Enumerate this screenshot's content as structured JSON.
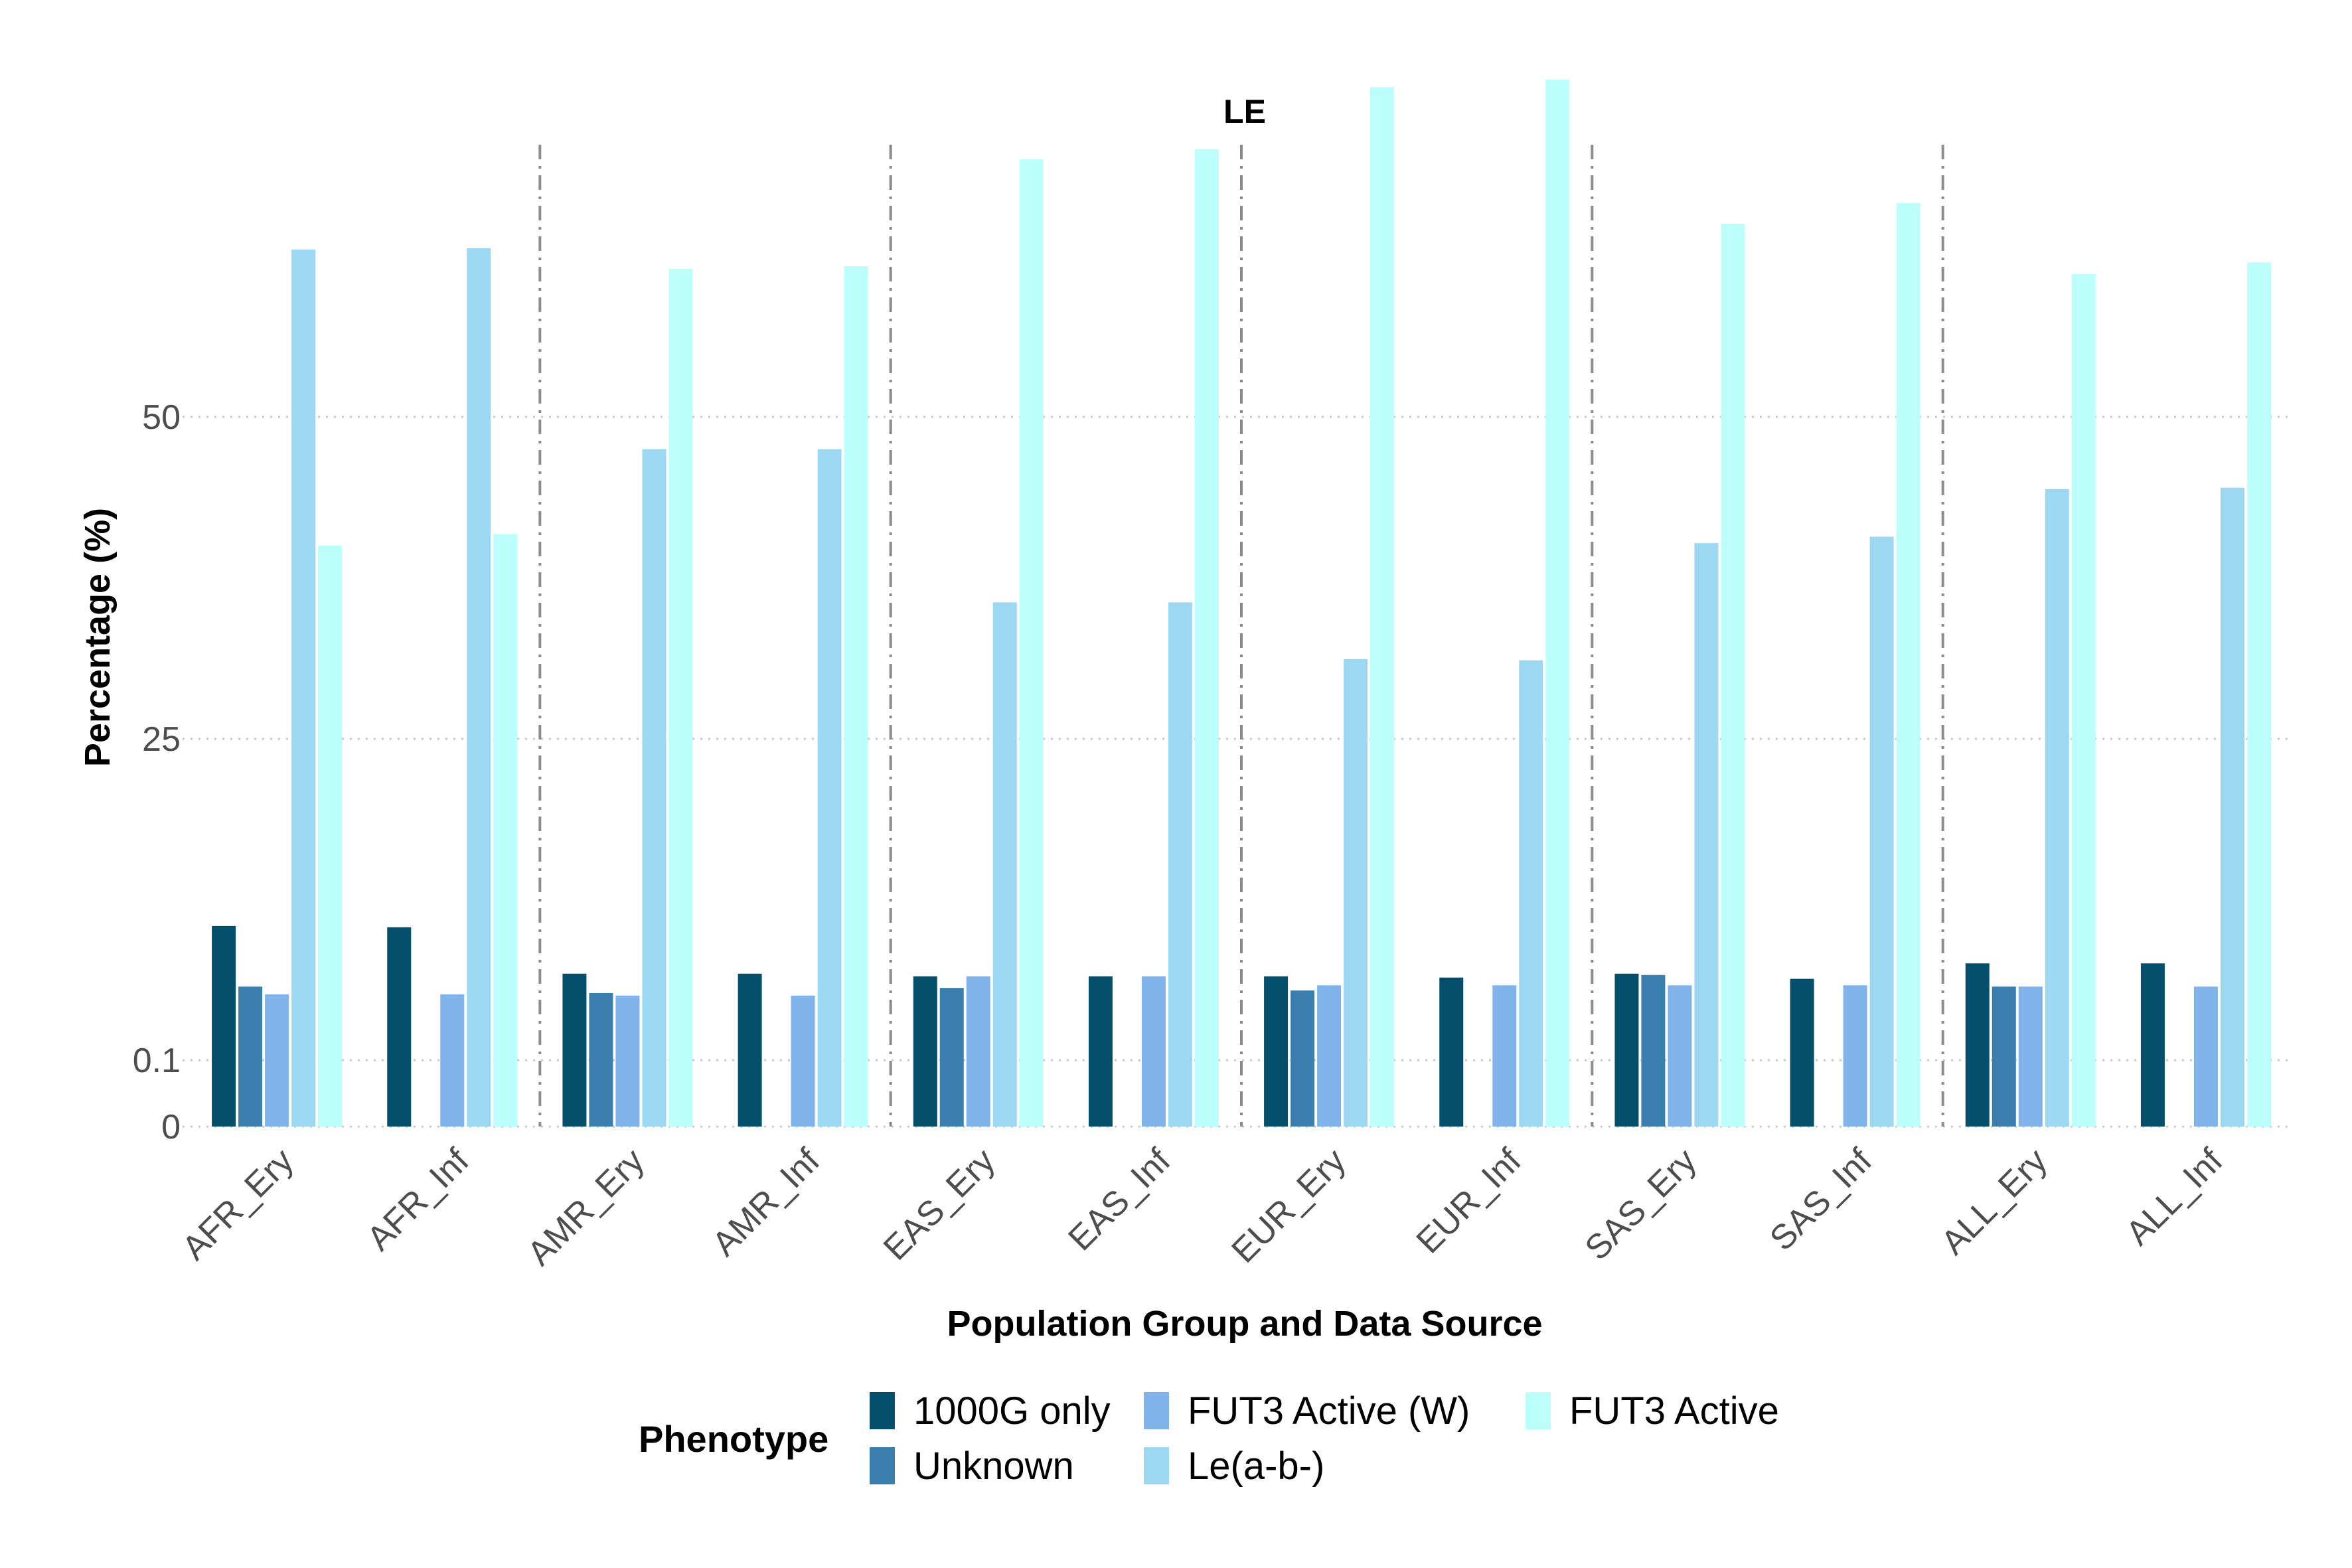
{
  "chart_data": {
    "type": "bar",
    "title": "LE",
    "xlabel": "Population Group and Data Source",
    "ylabel": "Percentage (%)",
    "y_ticks": [
      {
        "value": 0,
        "label": "0"
      },
      {
        "value": 0.1,
        "label": "0.1"
      },
      {
        "value": 25,
        "label": "25"
      },
      {
        "value": 50,
        "label": "50"
      }
    ],
    "ylim_top": 76,
    "grid": true,
    "legend": {
      "title": "Phenotype",
      "placement": "bottom"
    },
    "categories": [
      "AFR_Ery",
      "AFR_Inf",
      "AMR_Ery",
      "AMR_Inf",
      "EAS_Ery",
      "EAS_Inf",
      "EUR_Ery",
      "EUR_Inf",
      "SAS_Ery",
      "SAS_Inf",
      "ALL_Ery",
      "ALL_Inf"
    ],
    "group_separators_after": [
      "AFR_Inf",
      "AMR_Inf",
      "EAS_Inf",
      "EUR_Inf",
      "SAS_Inf"
    ],
    "series": [
      {
        "name": "1000G only",
        "color": "#044f6b",
        "values": [
          10.5,
          10.4,
          6.8,
          6.8,
          6.6,
          6.6,
          6.6,
          6.5,
          6.8,
          6.4,
          7.6,
          7.6
        ]
      },
      {
        "name": "Unknown",
        "color": "#3b7fae",
        "values": [
          5.8,
          0,
          5.3,
          0,
          5.7,
          0,
          5.5,
          0,
          6.7,
          0,
          5.8,
          0
        ]
      },
      {
        "name": "FUT3 Active (W)",
        "color": "#7fb3ea",
        "values": [
          5.2,
          5.2,
          5.1,
          5.1,
          6.6,
          6.6,
          5.9,
          5.9,
          5.9,
          5.9,
          5.8,
          5.8
        ]
      },
      {
        "name": "Le(a-b-)",
        "color": "#9dd8f3",
        "values": [
          63.0,
          63.1,
          47.5,
          47.5,
          35.6,
          35.6,
          31.2,
          31.1,
          40.2,
          40.7,
          44.4,
          44.5
        ]
      },
      {
        "name": "FUT3 Active",
        "color": "#bbfefc",
        "values": [
          40.0,
          40.9,
          61.5,
          61.7,
          70.0,
          70.8,
          75.6,
          76.2,
          65.0,
          66.6,
          61.1,
          62.0
        ]
      }
    ]
  }
}
